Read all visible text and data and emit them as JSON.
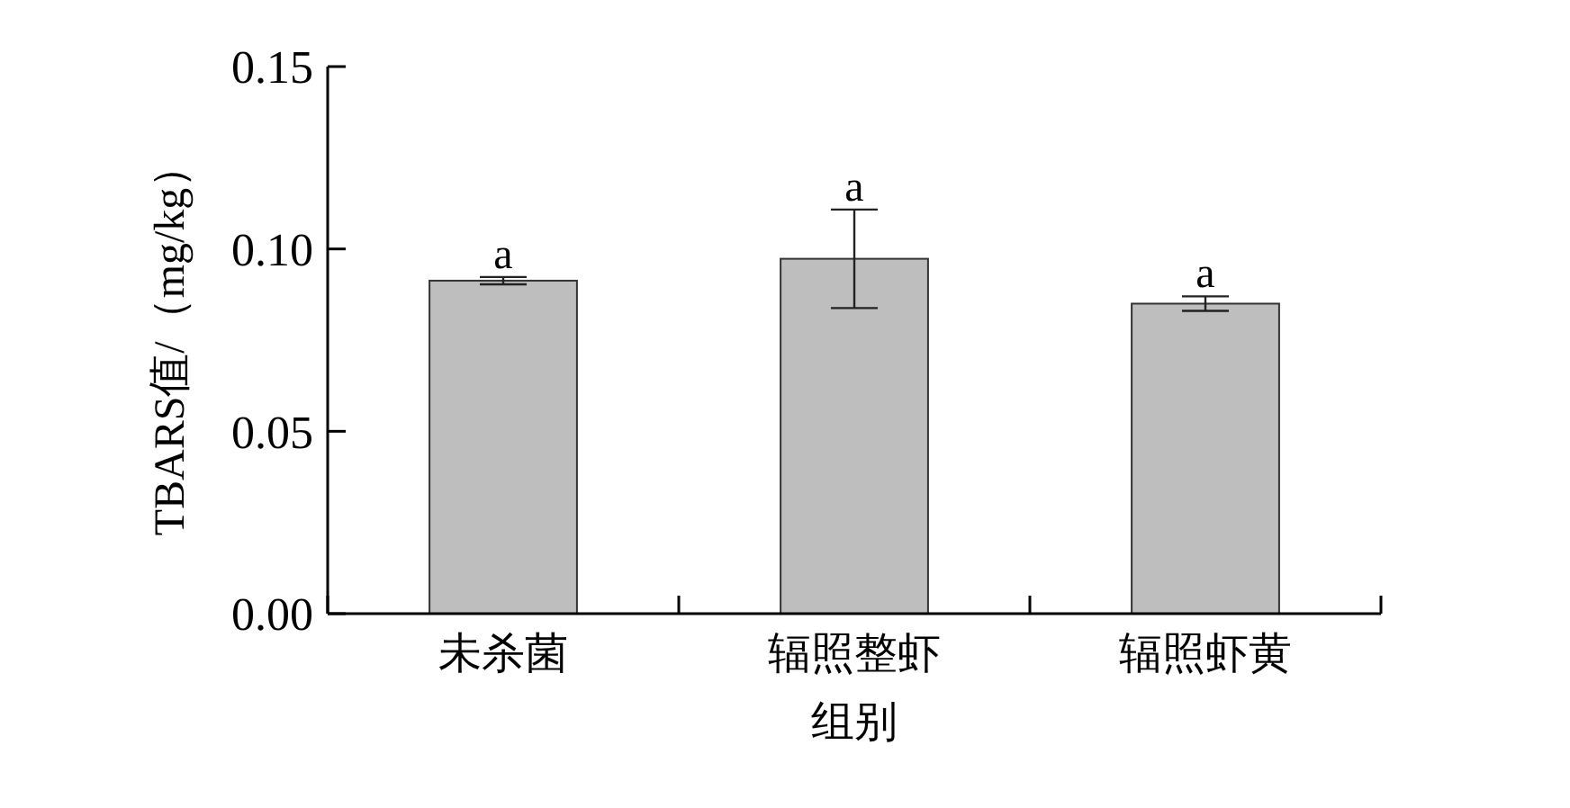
{
  "chart_data": {
    "type": "bar",
    "xlabel": "组别",
    "ylabel": "TBARS值/（mg/kg）",
    "categories": [
      "未杀菌",
      "辐照整虾",
      "辐照虾黄"
    ],
    "values": [
      0.0913,
      0.0973,
      0.085
    ],
    "errors": [
      0.001,
      0.0135,
      0.002
    ],
    "color": "#bebebf",
    "ylim": [
      0,
      0.15
    ],
    "yticks": [
      {
        "value": 0,
        "label": "0.00"
      },
      {
        "value": 0.05,
        "label": "0.05"
      },
      {
        "value": 0.1,
        "label": "0.10"
      },
      {
        "value": 0.15,
        "label": "0.15"
      }
    ],
    "annotations": [
      {
        "text": "a",
        "x": "未杀菌",
        "y": 0.0923
      },
      {
        "text": "a",
        "x": "辐照整虾",
        "y": 0.1108
      },
      {
        "text": "a",
        "x": "辐照虾黄",
        "y": 0.087
      }
    ],
    "grid": false
  }
}
